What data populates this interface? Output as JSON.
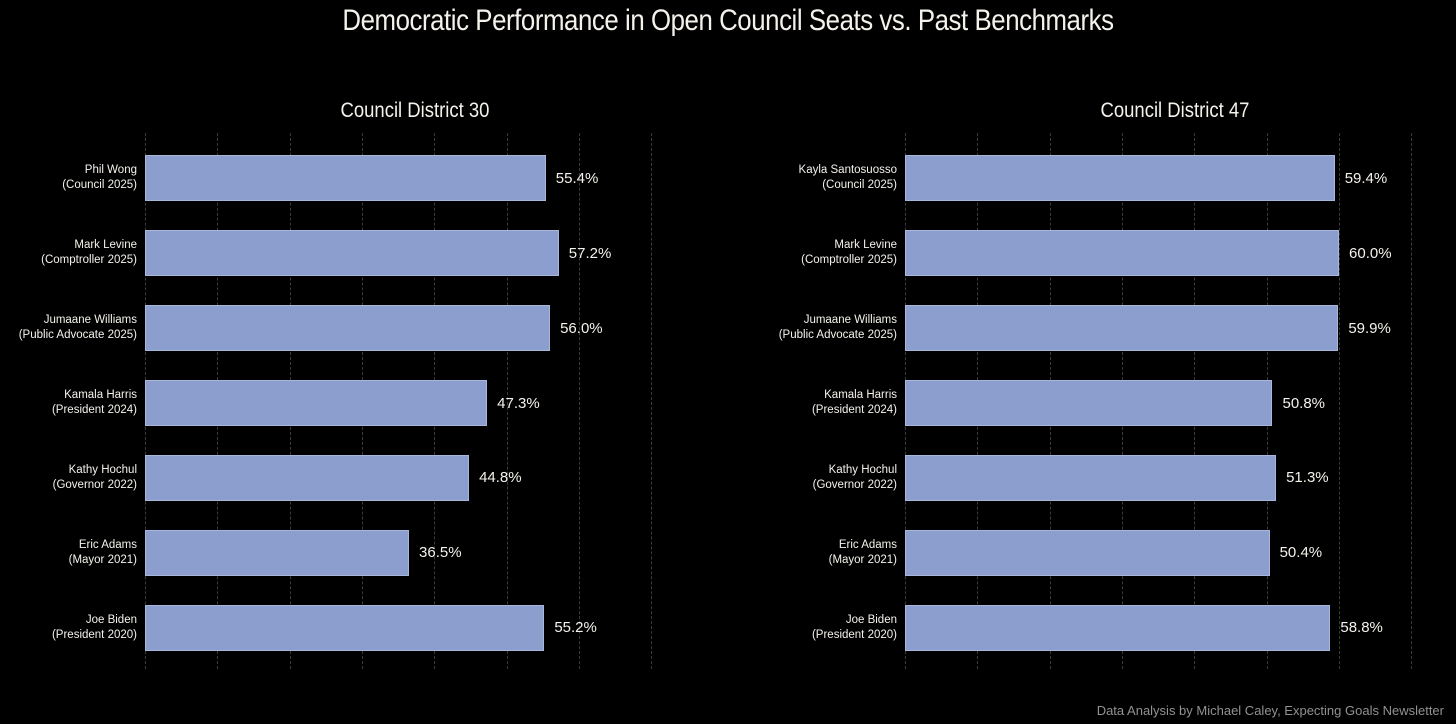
{
  "title": "Democratic Performance in Open Council Seats vs. Past Benchmarks",
  "credit": "Data Analysis by Michael Caley, Expecting Goals Newsletter",
  "colors": {
    "background": "#000000",
    "bar": "#8C9ECD",
    "bar_edge": "#A9B6DC",
    "gridline": "#3b3b3b",
    "text": "#f5f2ec",
    "credit_text": "#929292"
  },
  "chart_data": [
    {
      "type": "bar",
      "orientation": "horizontal",
      "title": "Council District 30",
      "xlim": [
        0,
        70.5
      ],
      "gridline_interval": 10,
      "gridline_max": 70,
      "grid": "dashed",
      "legend": "none",
      "bars": [
        {
          "name": "Phil Wong",
          "office": "(Council 2025)",
          "value": 55.4,
          "label": "55.4%"
        },
        {
          "name": "Mark Levine",
          "office": "(Comptroller 2025)",
          "value": 57.2,
          "label": "57.2%"
        },
        {
          "name": "Jumaane Williams",
          "office": "(Public Advocate 2025)",
          "value": 56.0,
          "label": "56.0%"
        },
        {
          "name": "Kamala Harris",
          "office": "(President 2024)",
          "value": 47.3,
          "label": "47.3%"
        },
        {
          "name": "Kathy Hochul",
          "office": "(Governor 2022)",
          "value": 44.8,
          "label": "44.8%"
        },
        {
          "name": "Eric Adams",
          "office": "(Mayor 2021)",
          "value": 36.5,
          "label": "36.5%"
        },
        {
          "name": "Joe Biden",
          "office": "(President 2020)",
          "value": 55.2,
          "label": "55.2%"
        }
      ]
    },
    {
      "type": "bar",
      "orientation": "horizontal",
      "title": "Council District 47",
      "xlim": [
        0,
        70.5
      ],
      "gridline_interval": 10,
      "gridline_max": 70,
      "grid": "dashed",
      "legend": "none",
      "bars": [
        {
          "name": "Kayla Santosuosso",
          "office": "(Council 2025)",
          "value": 59.4,
          "label": "59.4%"
        },
        {
          "name": "Mark Levine",
          "office": "(Comptroller 2025)",
          "value": 60.0,
          "label": "60.0%"
        },
        {
          "name": "Jumaane Williams",
          "office": "(Public Advocate 2025)",
          "value": 59.9,
          "label": "59.9%"
        },
        {
          "name": "Kamala Harris",
          "office": "(President 2024)",
          "value": 50.8,
          "label": "50.8%"
        },
        {
          "name": "Kathy Hochul",
          "office": "(Governor 2022)",
          "value": 51.3,
          "label": "51.3%"
        },
        {
          "name": "Eric Adams",
          "office": "(Mayor 2021)",
          "value": 50.4,
          "label": "50.4%"
        },
        {
          "name": "Joe Biden",
          "office": "(President 2020)",
          "value": 58.8,
          "label": "58.8%"
        }
      ]
    }
  ]
}
